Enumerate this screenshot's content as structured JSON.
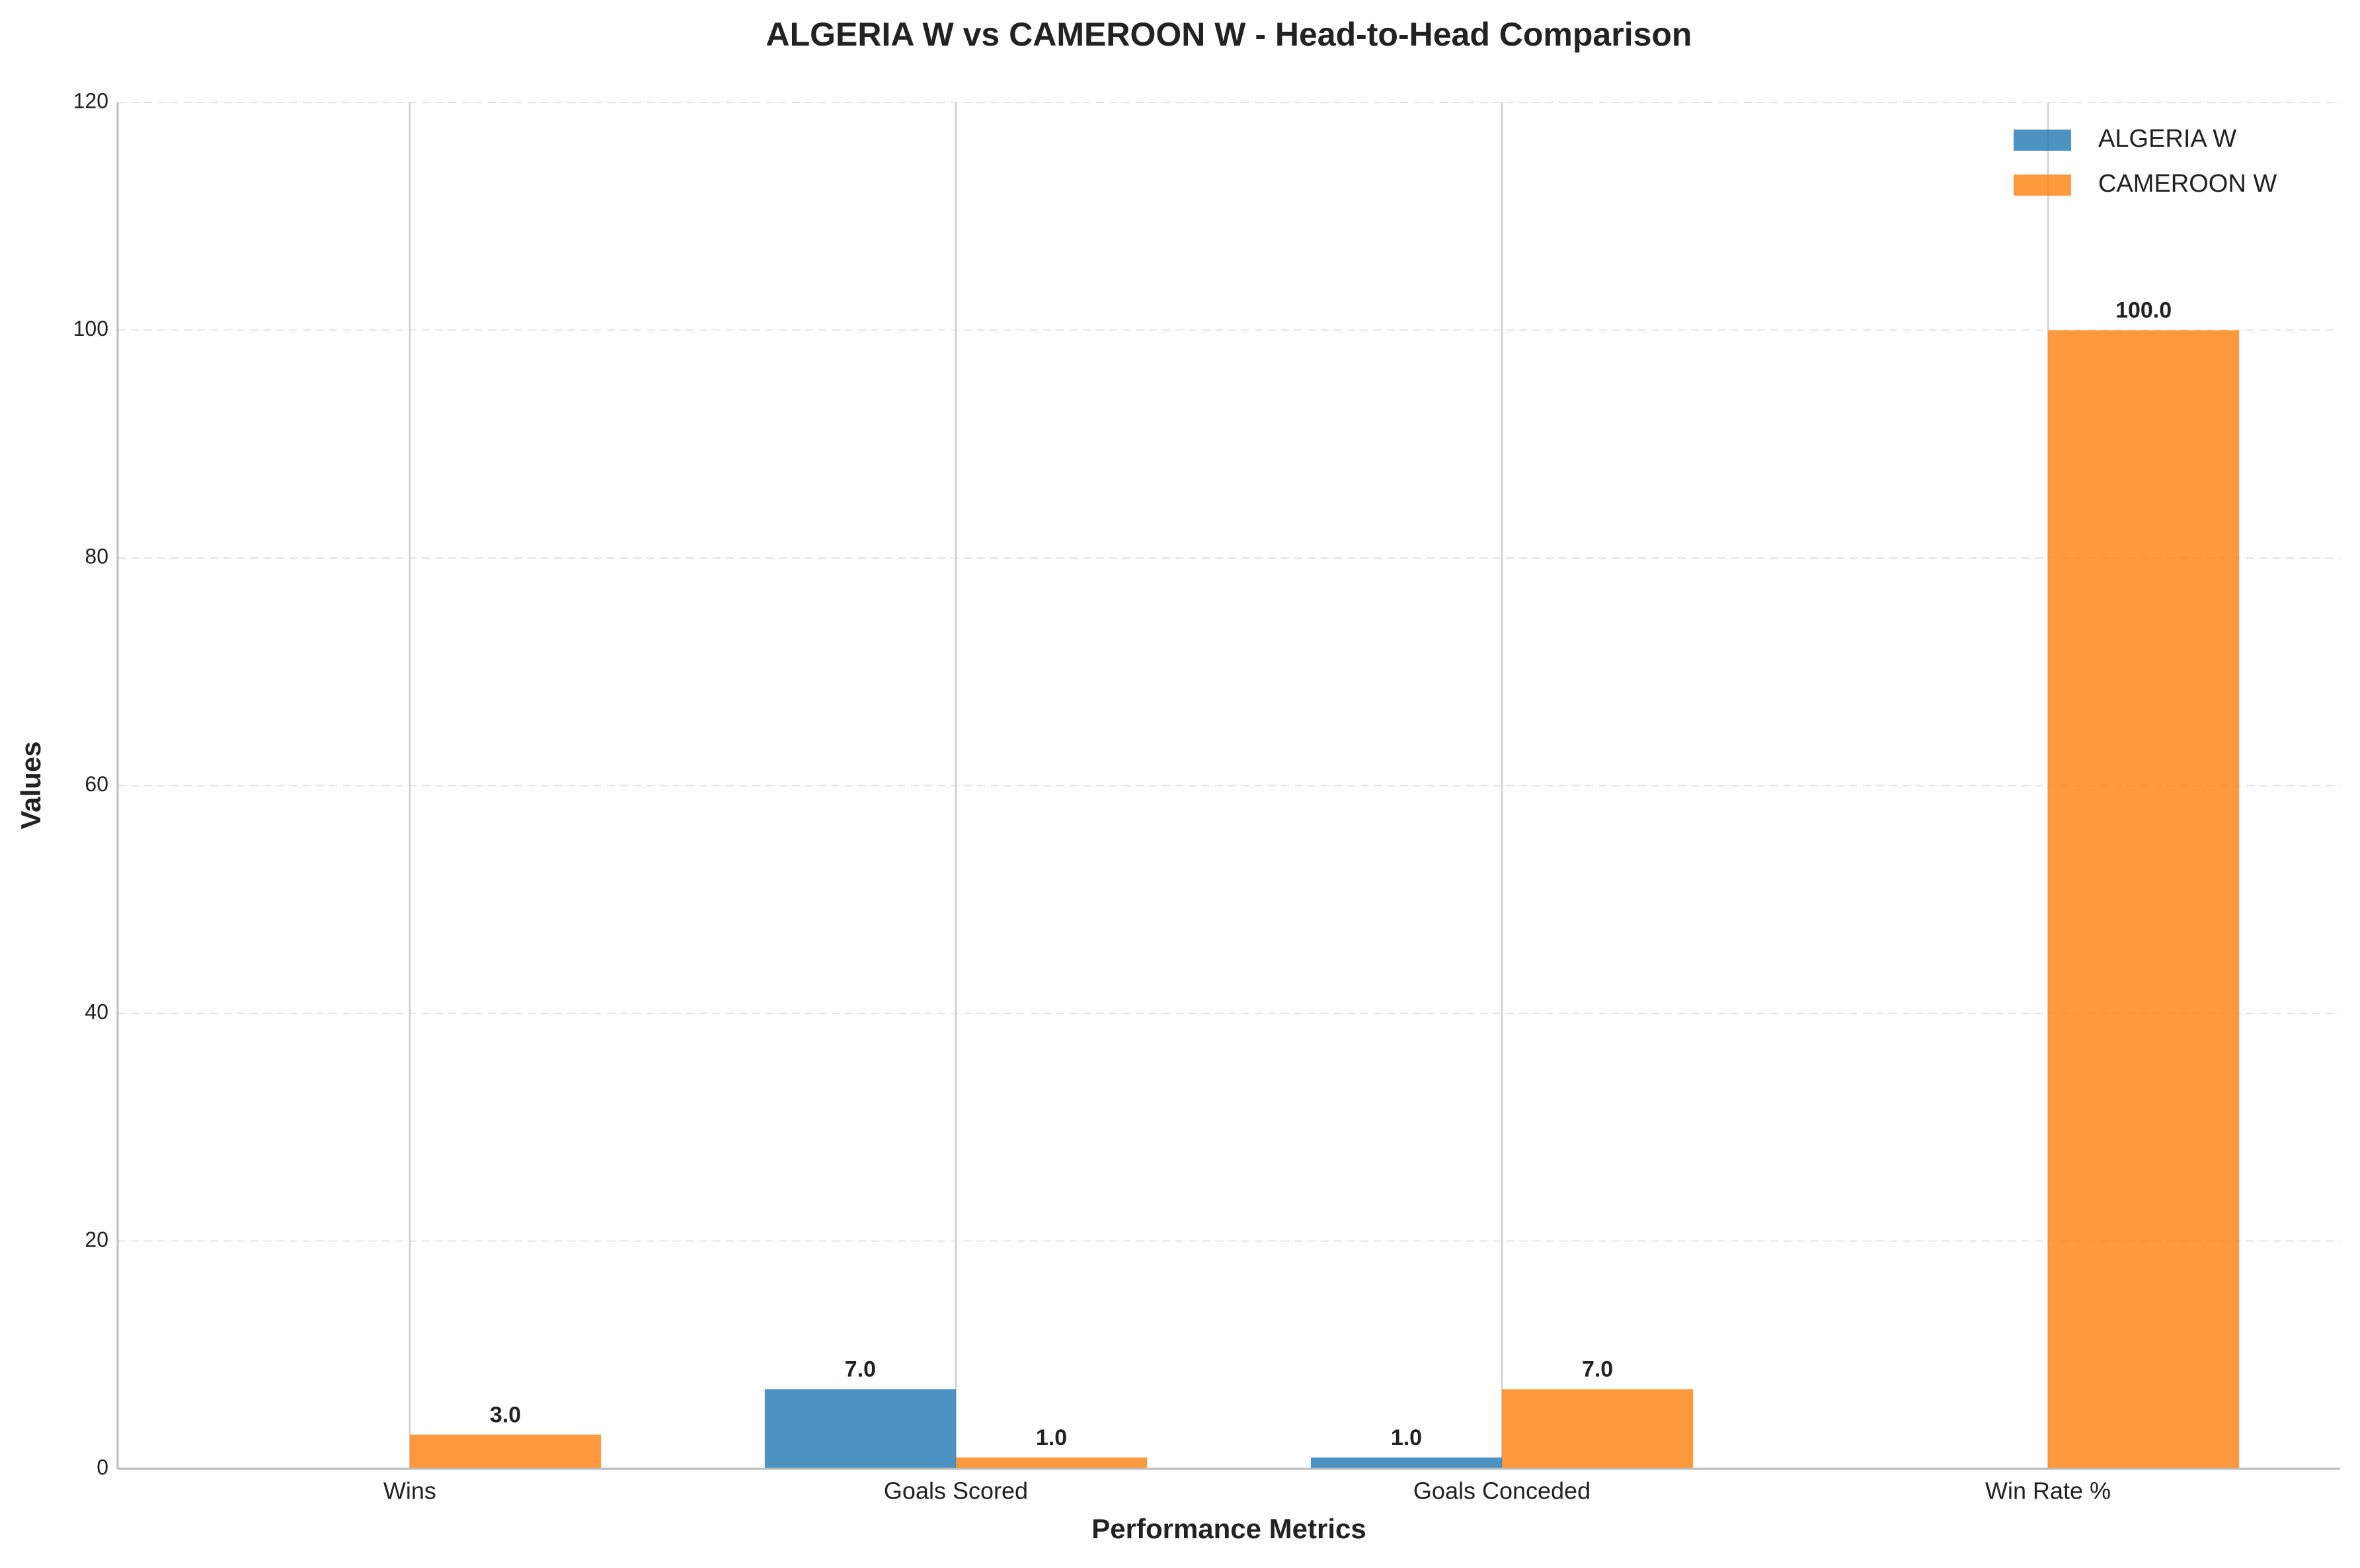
{
  "chart_data": {
    "type": "bar",
    "title": "ALGERIA W vs CAMEROON W - Head-to-Head Comparison",
    "x_label": "Performance Metrics",
    "y_label": "Values",
    "categories": [
      "Wins",
      "Goals Scored",
      "Goals Conceded",
      "Win Rate %"
    ],
    "series": [
      {
        "name": "ALGERIA W",
        "color": "#1f77b4",
        "values": [
          0,
          7,
          1,
          0
        ],
        "value_labels": [
          null,
          "7.0",
          "1.0",
          null
        ]
      },
      {
        "name": "CAMEROON W",
        "color": "#ff7f0e",
        "values": [
          3,
          1,
          7,
          100
        ],
        "value_labels": [
          "3.0",
          "1.0",
          "7.0",
          "100.0"
        ]
      }
    ],
    "ylim": [
      0,
      120
    ],
    "yticks": [
      0,
      20,
      40,
      60,
      80,
      100,
      120
    ],
    "grid": true,
    "legend": "upper right"
  }
}
